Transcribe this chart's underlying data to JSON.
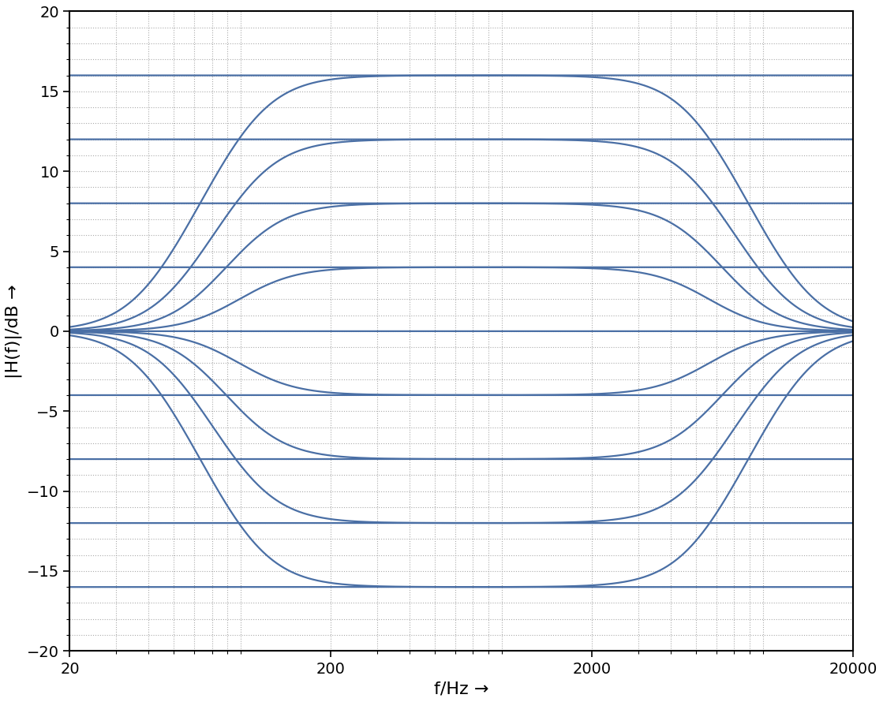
{
  "xlabel": "f/Hz →",
  "ylabel": "|H(f)|/dB →",
  "xlim": [
    20,
    20000
  ],
  "ylim": [
    -20,
    20
  ],
  "yticks": [
    -20,
    -15,
    -10,
    -5,
    0,
    5,
    10,
    15,
    20
  ],
  "xtick_labels": [
    "20",
    "200",
    "2000",
    "20000"
  ],
  "xtick_positions": [
    20,
    200,
    2000,
    20000
  ],
  "fc_low": 100,
  "fc_high": 5000,
  "V0_values": [
    16,
    12,
    8,
    4,
    -4,
    -8,
    -12,
    -16
  ],
  "line_color": "#4a6fa5",
  "line_width": 1.6,
  "grid_color": "#aaaaaa",
  "grid_linestyle": ":",
  "background_color": "#ffffff",
  "xlabel_fontsize": 16,
  "ylabel_fontsize": 16,
  "tick_fontsize": 14
}
